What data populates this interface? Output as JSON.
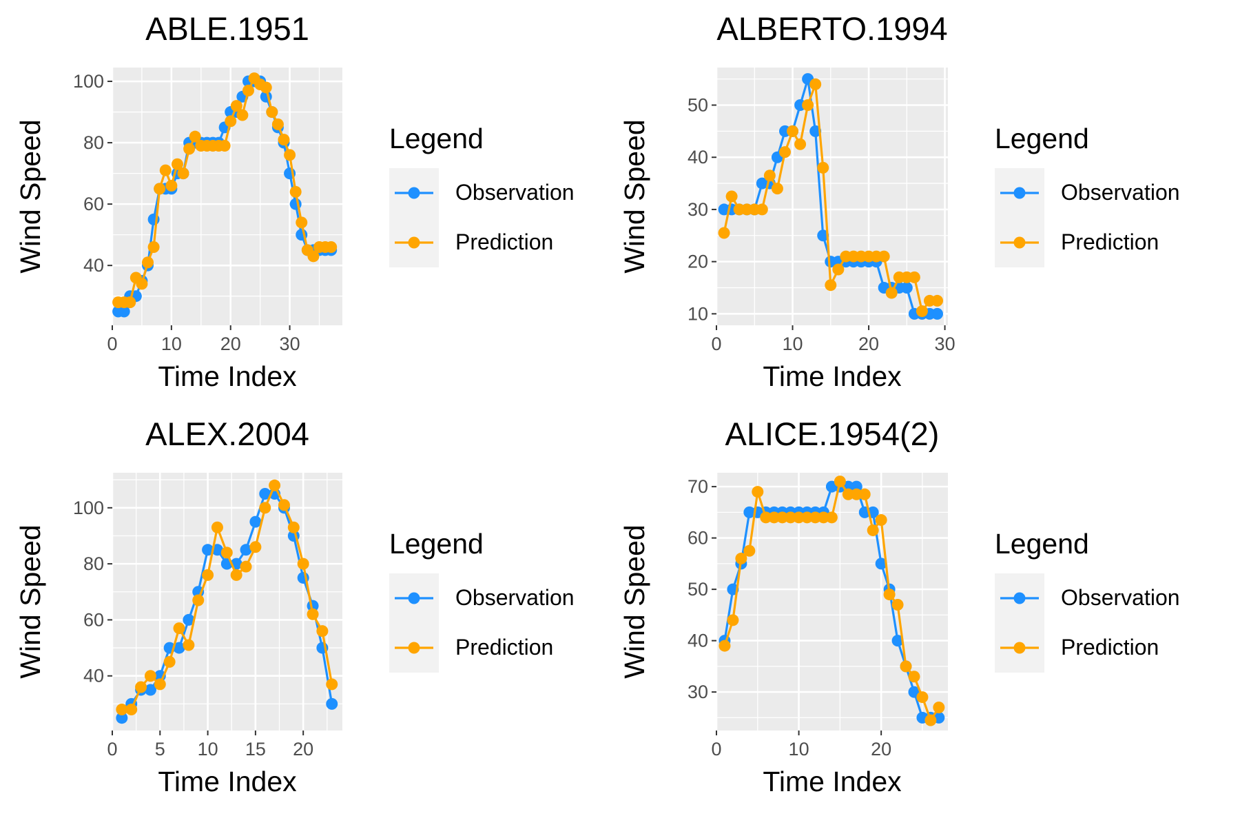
{
  "colors": {
    "observation": "#1E90FF",
    "prediction": "#FFA500",
    "panel_bg": "#EBEBEB",
    "grid": "#FFFFFF",
    "text": "#000000",
    "tick_text": "#4D4D4D"
  },
  "legend": {
    "title": "Legend",
    "entries": [
      "Observation",
      "Prediction"
    ]
  },
  "chart_data": [
    {
      "type": "line",
      "title": "ABLE.1951",
      "xlabel": "Time Index",
      "ylabel": "Wind Speed",
      "xlim": [
        0,
        38.9
      ],
      "ylim": [
        20.5,
        104.5
      ],
      "xticks": [
        0,
        10,
        20,
        30
      ],
      "yticks": [
        40,
        60,
        80,
        100
      ],
      "grid": true,
      "legend_position": "right",
      "x": [
        1,
        2,
        3,
        4,
        5,
        6,
        7,
        8,
        9,
        10,
        11,
        12,
        13,
        14,
        15,
        16,
        17,
        18,
        19,
        20,
        21,
        22,
        23,
        24,
        25,
        26,
        27,
        28,
        29,
        30,
        31,
        32,
        33,
        34,
        35,
        36,
        37
      ],
      "series": [
        {
          "name": "Observation",
          "values": [
            25,
            25,
            30,
            30,
            35,
            40,
            55,
            65,
            65,
            65,
            70,
            70,
            80,
            80,
            80,
            80,
            80,
            80,
            85,
            90,
            90,
            95,
            100,
            100,
            100,
            95,
            90,
            85,
            80,
            70,
            60,
            50,
            45,
            45,
            45,
            45,
            45
          ]
        },
        {
          "name": "Prediction",
          "values": [
            28,
            28,
            28,
            36,
            34,
            41,
            46,
            65,
            71,
            66,
            73,
            70,
            78,
            82,
            79,
            79,
            79,
            79,
            79,
            87,
            92,
            89,
            97,
            101,
            99,
            98,
            90,
            86,
            81,
            76,
            64,
            54,
            45,
            43,
            46,
            46,
            46
          ]
        }
      ]
    },
    {
      "type": "line",
      "title": "ALBERTO.1994",
      "xlabel": "Time Index",
      "ylabel": "Wind Speed",
      "xlim": [
        0,
        30.4
      ],
      "ylim": [
        7.8,
        57.2
      ],
      "xticks": [
        0,
        10,
        20,
        30
      ],
      "yticks": [
        10,
        20,
        30,
        40,
        50
      ],
      "grid": true,
      "legend_position": "right",
      "x": [
        1,
        2,
        3,
        4,
        5,
        6,
        7,
        8,
        9,
        10,
        11,
        12,
        13,
        14,
        15,
        16,
        17,
        18,
        19,
        20,
        21,
        22,
        23,
        24,
        25,
        26,
        27,
        28,
        29
      ],
      "series": [
        {
          "name": "Observation",
          "values": [
            30,
            30,
            30,
            30,
            30,
            35,
            35,
            40,
            45,
            45,
            50,
            55,
            45,
            25,
            20,
            20,
            20,
            20,
            20,
            20,
            20,
            15,
            15,
            15,
            15,
            10,
            10,
            10,
            10
          ]
        },
        {
          "name": "Prediction",
          "values": [
            25.5,
            32.5,
            30,
            30,
            30,
            30,
            36.5,
            34,
            41,
            45,
            42.5,
            50,
            54,
            38,
            15.5,
            18.5,
            21,
            21,
            21,
            21,
            21,
            21,
            14,
            17,
            17,
            17,
            10.5,
            12.5,
            12.5
          ]
        }
      ]
    },
    {
      "type": "line",
      "title": "ALEX.2004",
      "xlabel": "Time Index",
      "ylabel": "Wind Speed",
      "xlim": [
        0,
        24.1
      ],
      "ylim": [
        20.5,
        112.5
      ],
      "xticks": [
        0,
        5,
        10,
        15,
        20
      ],
      "yticks": [
        40,
        60,
        80,
        100
      ],
      "grid": true,
      "legend_position": "right",
      "x": [
        1,
        2,
        3,
        4,
        5,
        6,
        7,
        8,
        9,
        10,
        11,
        12,
        13,
        14,
        15,
        16,
        17,
        18,
        19,
        20,
        21,
        22,
        23
      ],
      "series": [
        {
          "name": "Observation",
          "values": [
            25,
            30,
            35,
            35,
            40,
            50,
            50,
            60,
            70,
            85,
            85,
            80,
            80,
            85,
            95,
            105,
            105,
            100,
            90,
            75,
            65,
            50,
            30
          ]
        },
        {
          "name": "Prediction",
          "values": [
            28,
            28,
            36,
            40,
            37,
            45,
            57,
            51,
            67,
            76,
            93,
            84,
            76,
            79,
            86,
            100,
            108,
            101,
            93,
            80,
            62,
            56,
            37
          ]
        }
      ]
    },
    {
      "type": "line",
      "title": "ALICE.1954(2)",
      "xlabel": "Time Index",
      "ylabel": "Wind Speed",
      "xlim": [
        0,
        28.1
      ],
      "ylim": [
        22.5,
        72.7
      ],
      "xticks": [
        0,
        10,
        20
      ],
      "yticks": [
        30,
        40,
        50,
        60,
        70
      ],
      "grid": true,
      "legend_position": "right",
      "x": [
        1,
        2,
        3,
        4,
        5,
        6,
        7,
        8,
        9,
        10,
        11,
        12,
        13,
        14,
        15,
        16,
        17,
        18,
        19,
        20,
        21,
        22,
        23,
        24,
        25,
        26,
        27
      ],
      "series": [
        {
          "name": "Observation",
          "values": [
            40,
            50,
            55,
            65,
            65,
            65,
            65,
            65,
            65,
            65,
            65,
            65,
            65,
            70,
            70,
            70,
            70,
            65,
            65,
            55,
            50,
            40,
            35,
            30,
            25,
            25,
            25
          ]
        },
        {
          "name": "Prediction",
          "values": [
            39,
            44,
            56,
            57.5,
            69,
            64,
            64,
            64,
            64,
            64,
            64,
            64,
            64,
            64,
            71,
            68.5,
            68.5,
            68.5,
            61.5,
            63.5,
            49,
            47,
            35,
            33,
            29,
            24.5,
            27
          ]
        }
      ]
    }
  ]
}
